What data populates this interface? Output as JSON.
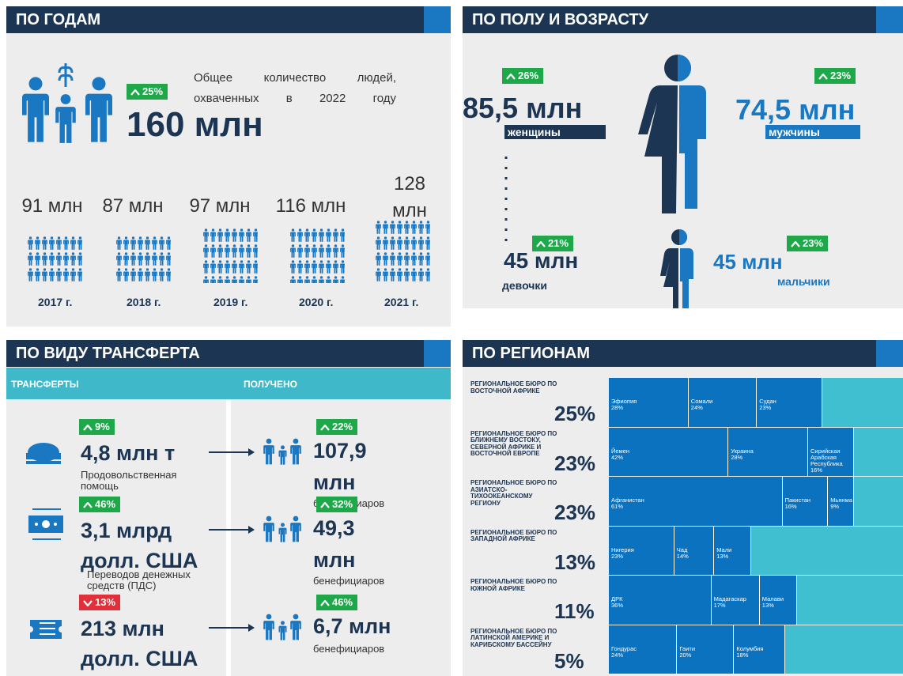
{
  "years": {
    "title": "ПО ГОДАМ",
    "description": "Общее количество людей, охваченных в 2022 году",
    "change": "25%",
    "direction": "up",
    "total": "160 млн",
    "items": [
      {
        "value": "91 млн",
        "year": "2017 г."
      },
      {
        "value": "87 млн",
        "year": "2018 г."
      },
      {
        "value": "97 млн",
        "year": "2019 г."
      },
      {
        "value": "116 млн",
        "year": "2020 г."
      },
      {
        "value": "128 млн",
        "year": "2021 г."
      }
    ]
  },
  "gender": {
    "title": "ПО ПОЛУ И ВОЗРАСТУ",
    "women": {
      "change": "26%",
      "direction": "up",
      "value": "85,5 млн",
      "label": "женщины"
    },
    "men": {
      "change": "23%",
      "direction": "up",
      "value": "74,5 млн",
      "label": "мужчины"
    },
    "girls": {
      "change": "21%",
      "direction": "up",
      "value": "45 млн",
      "label": "девочки"
    },
    "boys": {
      "change": "23%",
      "direction": "up",
      "value": "45 млн",
      "label": "мальчики"
    }
  },
  "transfers": {
    "title": "ПО ВИДУ ТРАНСФЕРТА",
    "columns": [
      "ТРАНСФЕРТЫ",
      "ПОЛУЧЕНО"
    ],
    "rows": [
      {
        "change": "9%",
        "direction": "up",
        "value": "4,8 млн т",
        "label": "Продовольственная помощь",
        "received_change": "22%",
        "received_direction": "up",
        "received": "107,9 млн",
        "received_label": "бенефициаров"
      },
      {
        "change": "46%",
        "direction": "up",
        "value": "3,1 млрд долл. США",
        "label": "Переводов денежных средств (ПДС)",
        "received_change": "32%",
        "received_direction": "up",
        "received": "49,3 млн",
        "received_label": "бенефициаров"
      },
      {
        "change": "13%",
        "direction": "down",
        "value": "213 млн долл. США",
        "received_change": "46%",
        "received_direction": "up",
        "received": "6,7 млн",
        "received_label": "бенефициаров"
      }
    ]
  },
  "regions": {
    "title": "ПО РЕГИОНАМ",
    "rows": [
      {
        "name": "Региональное бюро по Восточной Африке",
        "share": "25%",
        "countries": [
          {
            "name": "Эфиопия",
            "share": "28%"
          },
          {
            "name": "Сомали",
            "share": "24%"
          },
          {
            "name": "Судан",
            "share": "23%"
          }
        ]
      },
      {
        "name": "Региональное бюро по Ближнему Востоку, Северной Африке и Восточной Европе",
        "share": "23%",
        "countries": [
          {
            "name": "Йемен",
            "share": "42%"
          },
          {
            "name": "Украина",
            "share": "28%"
          },
          {
            "name": "Сирийская Арабская Республика",
            "share": "16%"
          }
        ]
      },
      {
        "name": "Региональное бюро по Азиатско-Тихоокеанскому региону",
        "share": "23%",
        "countries": [
          {
            "name": "Афганистан",
            "share": "61%"
          },
          {
            "name": "Пакистан",
            "share": "16%"
          },
          {
            "name": "Мьянма",
            "share": "9%"
          }
        ]
      },
      {
        "name": "Региональное бюро по Западной Африке",
        "share": "13%",
        "countries": [
          {
            "name": "Нигерия",
            "share": "23%"
          },
          {
            "name": "Чад",
            "share": "14%"
          },
          {
            "name": "Мали",
            "share": "13%"
          }
        ]
      },
      {
        "name": "Региональное бюро по Южной Африке",
        "share": "11%",
        "countries": [
          {
            "name": "ДРК",
            "share": "36%"
          },
          {
            "name": "Мадагаскар",
            "share": "17%"
          },
          {
            "name": "Малави",
            "share": "13%"
          }
        ]
      },
      {
        "name": "Региональное бюро по Латинской Америке и Карибскому бассейну",
        "share": "5%",
        "countries": [
          {
            "name": "Гондурас",
            "share": "24%"
          },
          {
            "name": "Гаити",
            "share": "20%"
          },
          {
            "name": "Колумбия",
            "share": "18%"
          }
        ]
      }
    ]
  }
}
